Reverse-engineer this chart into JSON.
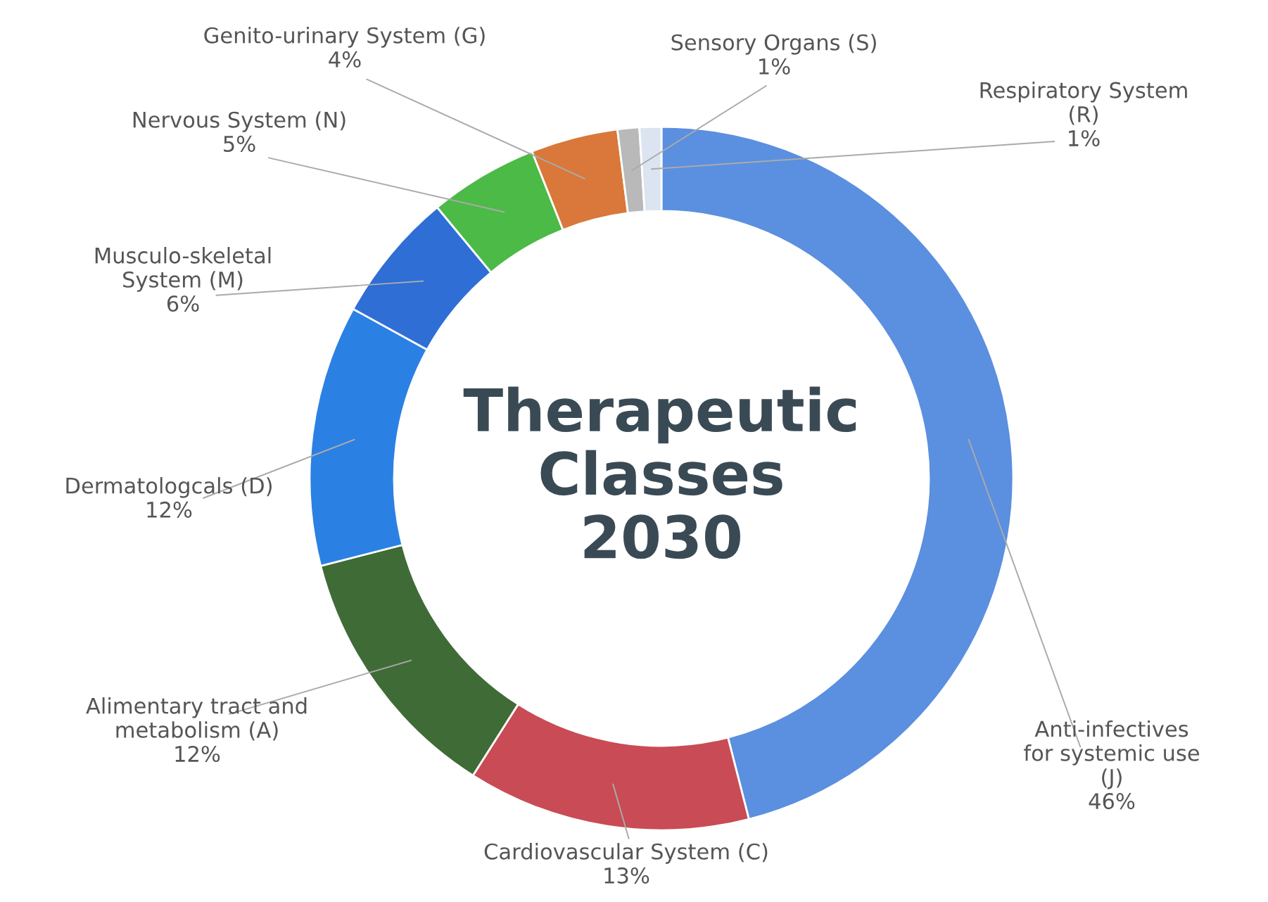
{
  "chart_data": {
    "type": "donut",
    "title": "Therapeutic\nClasses\n2030",
    "categories": [
      "Anti-infectives\nfor systemic use\n(J)",
      "Cardiovascular System (C)",
      "Alimentary tract and\nmetabolism (A)",
      "Dermatologcals (D)",
      "Musculo-skeletal\nSystem (M)",
      "Nervous System (N)",
      "Genito-urinary System (G)",
      "Sensory Organs (S)",
      "Respiratory System\n(R)"
    ],
    "values": [
      46,
      13,
      12,
      12,
      6,
      5,
      4,
      1,
      1
    ],
    "value_labels": [
      "46%",
      "13%",
      "12%",
      "12%",
      "6%",
      "5%",
      "4%",
      "1%",
      "1%"
    ],
    "colors": [
      "#5b8fdf",
      "#c84b55",
      "#3f6b36",
      "#2b80e3",
      "#2e6ed5",
      "#4cba46",
      "#d9783a",
      "#b9b9b9",
      "#dbe4f0"
    ],
    "legend": false
  }
}
